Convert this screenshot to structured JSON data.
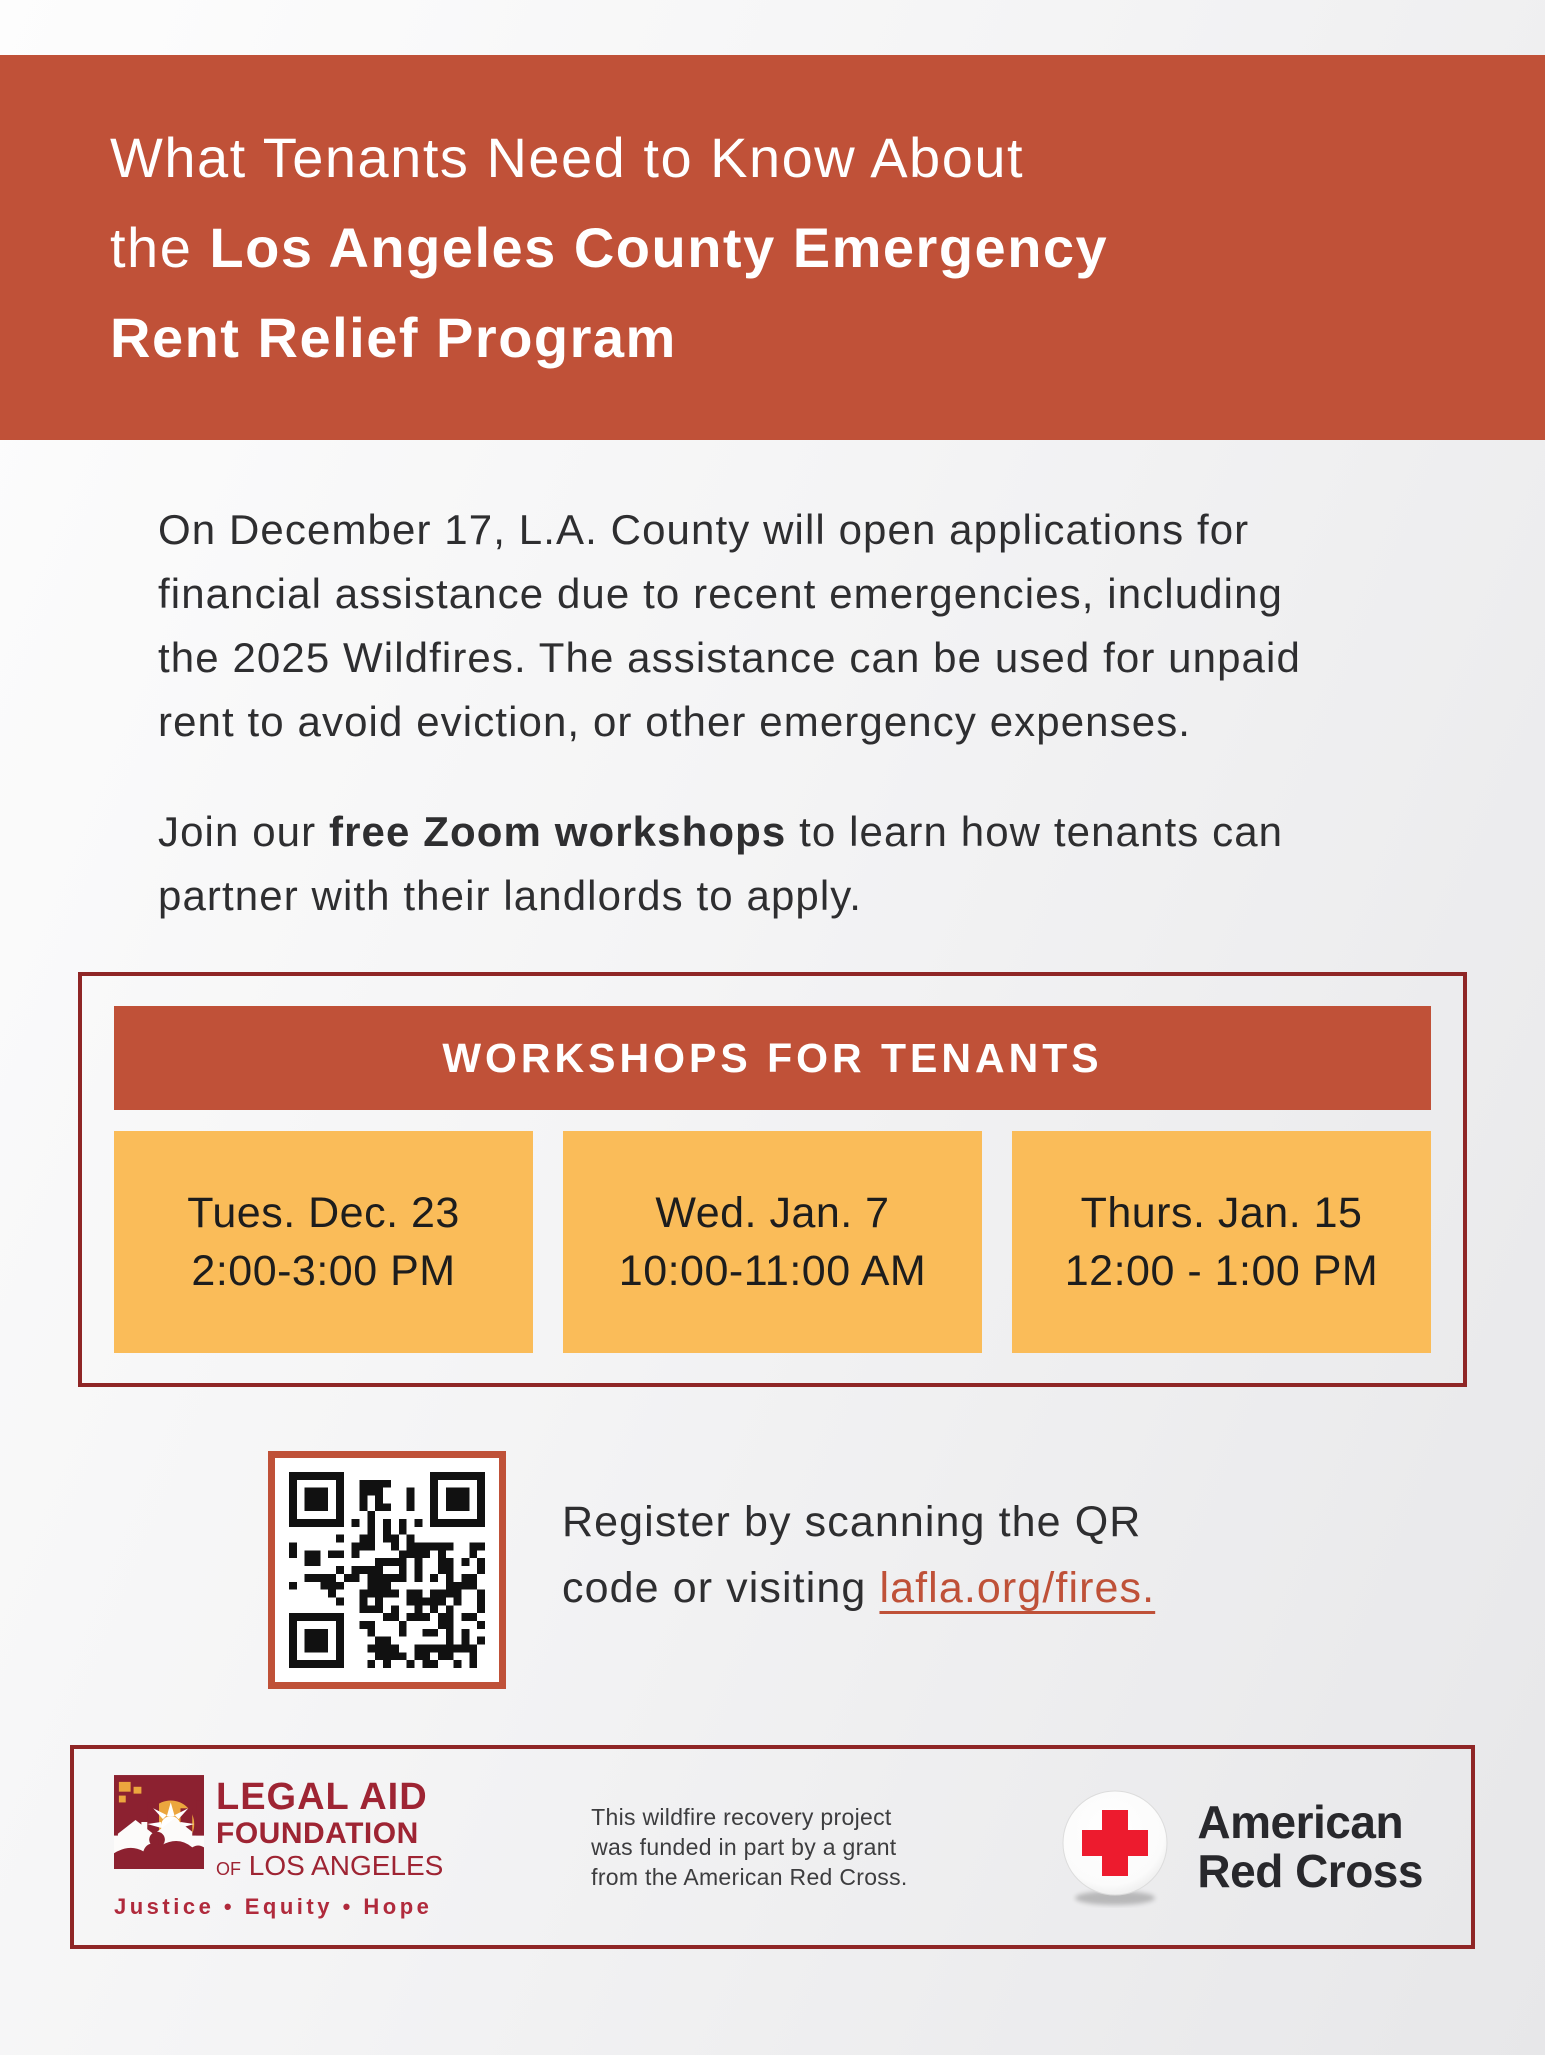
{
  "header": {
    "title_line1": "What Tenants Need to Know About",
    "title_line2_prefix": "the ",
    "title_line2_bold": "Los Angeles County Emergency",
    "title_line3_bold": "Rent Relief Program"
  },
  "intro": {
    "paragraph1_lines": [
      "On December 17, L.A. County will open applications for",
      "financial assistance due to recent emergencies, including",
      "the 2025 Wildfires. The assistance can be used for unpaid",
      "rent to avoid eviction, or other emergency expenses."
    ],
    "paragraph2_prefix": "Join our ",
    "paragraph2_bold": "free Zoom workshops",
    "paragraph2_suffix": " to learn how tenants can",
    "paragraph2_line2": "partner with their landlords to apply."
  },
  "workshops": {
    "heading": "WORKSHOPS FOR TENANTS",
    "sessions": [
      {
        "date": "Tues. Dec. 23",
        "time": "2:00-3:00 PM"
      },
      {
        "date": "Wed. Jan. 7",
        "time": "10:00-11:00 AM"
      },
      {
        "date": "Thurs. Jan. 15",
        "time": "12:00 - 1:00 PM"
      }
    ]
  },
  "register": {
    "line1": "Register by scanning the QR",
    "line2_prefix": "code or visiting ",
    "link_text": "lafla.org/fires.",
    "qr_icon": "qr-code"
  },
  "footer": {
    "lafla": {
      "name_line1": "LEGAL AID",
      "name_line2": "FOUNDATION",
      "name_line3_small": "OF",
      "name_line3": "LOS ANGELES",
      "tagline": "Justice • Equity • Hope",
      "emblem_icon": "lafla-houses-sun-emblem"
    },
    "funding_note_lines": [
      "This wildfire recovery project",
      "was funded in part by a grant",
      "from the American Red Cross."
    ],
    "arc": {
      "name_line1": "American",
      "name_line2": "Red Cross",
      "emblem_icon": "red-cross-button"
    }
  },
  "colors": {
    "header_red": "#c05138",
    "maroon_border": "#8f2626",
    "card_orange": "#fabc59",
    "link_red": "#bf5138",
    "lafla_red": "#9e2433",
    "arc_red": "#ed1b2e"
  }
}
